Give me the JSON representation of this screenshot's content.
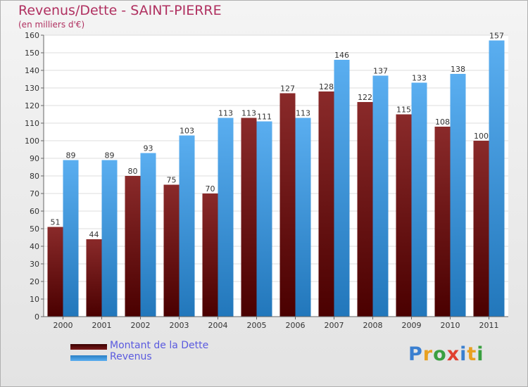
{
  "chart_data": {
    "type": "bar",
    "title": "Revenus/Dette - SAINT-PIERRE",
    "subtitle": "(en milliers d'€)",
    "categories": [
      "2000",
      "2001",
      "2002",
      "2003",
      "2004",
      "2005",
      "2006",
      "2007",
      "2008",
      "2009",
      "2010",
      "2011"
    ],
    "series": [
      {
        "name": "Montant de la Dette",
        "color": "#7a1b1b",
        "values": [
          51,
          44,
          80,
          75,
          70,
          113,
          127,
          128,
          122,
          115,
          108,
          100
        ]
      },
      {
        "name": "Revenus",
        "color": "#4fa3e6",
        "values": [
          89,
          89,
          93,
          103,
          113,
          111,
          113,
          146,
          137,
          133,
          138,
          157
        ]
      }
    ],
    "ylim": [
      0,
      160
    ],
    "ytick_step": 10,
    "grid": true,
    "legend_position": "bottom-left"
  },
  "logo": {
    "letters": [
      "P",
      "r",
      "o",
      "x",
      "i",
      "t",
      "i"
    ],
    "colors": [
      "#3a7fd0",
      "#e8a020",
      "#3aa040",
      "#e04030",
      "#3a7fd0",
      "#e8a020",
      "#3aa040"
    ]
  }
}
